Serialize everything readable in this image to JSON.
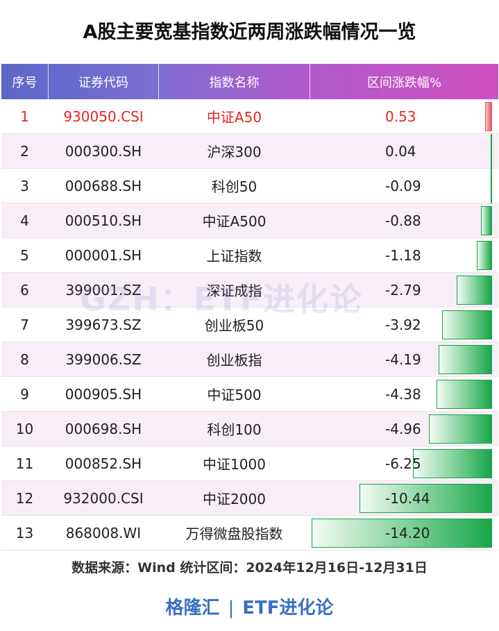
{
  "title": "A股主要宽基指数近两周涨跌幅情况一览",
  "header": {
    "seq": "序号",
    "code": "证券代码",
    "name": "指数名称",
    "change": "区间涨跌幅%"
  },
  "rows": [
    {
      "seq": "1",
      "code": "930050.CSI",
      "name": "中证A50",
      "value": "0.53",
      "num": 0.53
    },
    {
      "seq": "2",
      "code": "000300.SH",
      "name": "沪深300",
      "value": "0.04",
      "num": 0.04
    },
    {
      "seq": "3",
      "code": "000688.SH",
      "name": "科创50",
      "value": "-0.09",
      "num": -0.09
    },
    {
      "seq": "4",
      "code": "000510.SH",
      "name": "中证A500",
      "value": "-0.88",
      "num": -0.88
    },
    {
      "seq": "5",
      "code": "000001.SH",
      "name": "上证指数",
      "value": "-1.18",
      "num": -1.18
    },
    {
      "seq": "6",
      "code": "399001.SZ",
      "name": "深证成指",
      "value": "-2.79",
      "num": -2.79
    },
    {
      "seq": "7",
      "code": "399673.SZ",
      "name": "创业板50",
      "value": "-3.92",
      "num": -3.92
    },
    {
      "seq": "8",
      "code": "399006.SZ",
      "name": "创业板指",
      "value": "-4.19",
      "num": -4.19
    },
    {
      "seq": "9",
      "code": "000905.SH",
      "name": "中证500",
      "value": "-4.38",
      "num": -4.38
    },
    {
      "seq": "10",
      "code": "000698.SH",
      "name": "科创100",
      "value": "-4.96",
      "num": -4.96
    },
    {
      "seq": "11",
      "code": "000852.SH",
      "name": "中证1000",
      "value": "-6.25",
      "num": -6.25
    },
    {
      "seq": "12",
      "code": "932000.CSI",
      "name": "中证2000",
      "value": "-10.44",
      "num": -10.44
    },
    {
      "seq": "13",
      "code": "868008.WI",
      "name": "万得微盘股指数",
      "value": "-14.20",
      "num": -14.2
    }
  ],
  "watermark": "GZH：ETF进化论",
  "source": "数据来源：Wind 统计区间：2024年12月16日-12月31日",
  "footer": {
    "left": "格隆汇",
    "divider": "|",
    "right": "ETF进化论"
  },
  "colors": {
    "highlight_text": "#e8261d",
    "negative_bar": "#18a64a",
    "positive_bar": "#e85a66",
    "footer": "#3a6fc4"
  }
}
